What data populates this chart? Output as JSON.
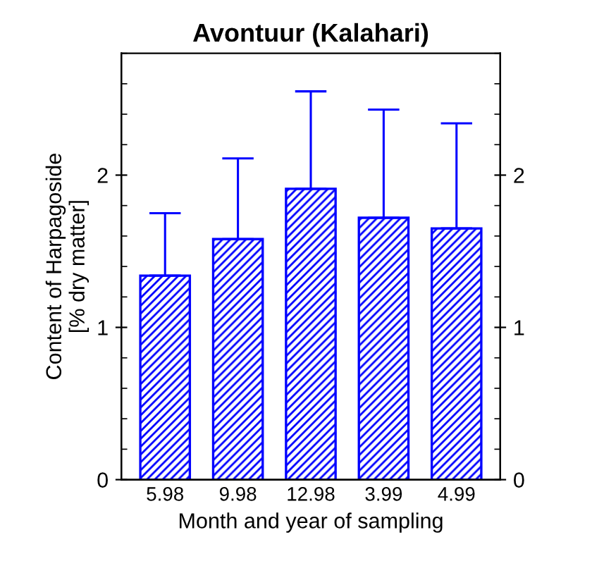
{
  "chart_data": {
    "type": "bar",
    "title": "Avontuur (Kalahari)",
    "xlabel": "Month and year of sampling",
    "ylabel": "Content of Harpagoside\n[% dry matter]",
    "categories": [
      "5.98",
      "9.98",
      "12.98",
      "3.99",
      "4.99"
    ],
    "values": [
      1.34,
      1.58,
      1.91,
      1.72,
      1.65
    ],
    "errors": [
      [
        1.34,
        1.75
      ],
      [
        1.58,
        2.11
      ],
      [
        1.91,
        2.55
      ],
      [
        1.72,
        2.43
      ],
      [
        1.65,
        2.34
      ]
    ],
    "color": "#0000ff",
    "ylim": [
      0,
      2.8
    ],
    "yticks": [
      0,
      1,
      2
    ],
    "y2lim": [
      0,
      2.8
    ],
    "y2ticks": [
      0,
      1,
      2
    ],
    "grid": false,
    "legend": false
  }
}
